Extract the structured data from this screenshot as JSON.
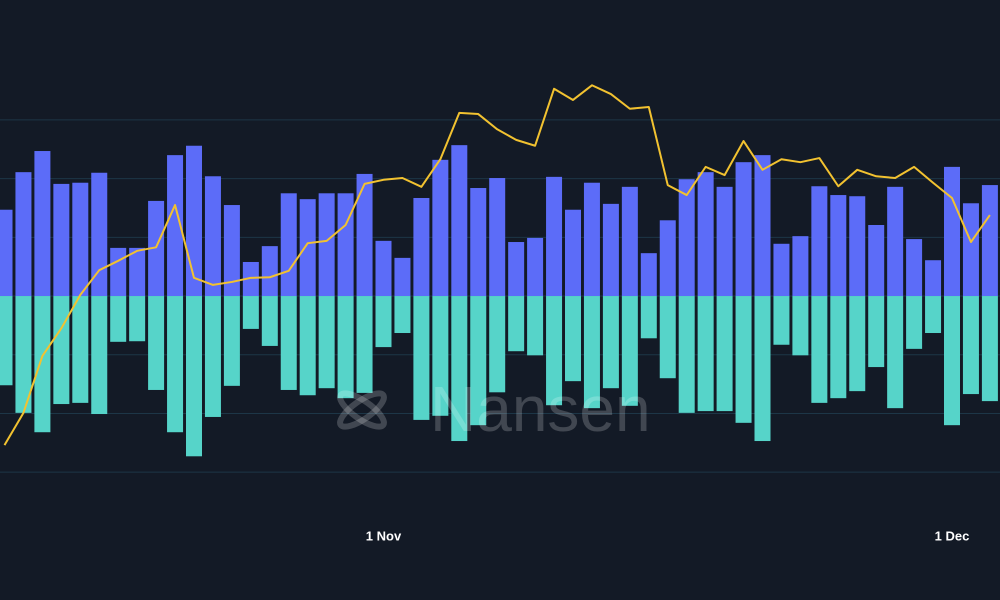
{
  "chart_data": {
    "type": "bar",
    "watermark": "Nansen",
    "categories": [
      null,
      null,
      null,
      null,
      null,
      null,
      null,
      null,
      null,
      null,
      null,
      null,
      null,
      null,
      null,
      null,
      null,
      null,
      null,
      null,
      "1 Nov",
      null,
      null,
      null,
      null,
      null,
      null,
      null,
      null,
      null,
      null,
      null,
      null,
      null,
      null,
      null,
      null,
      null,
      null,
      null,
      null,
      null,
      null,
      null,
      null,
      null,
      null,
      null,
      null,
      null,
      "1 Dec",
      null,
      null
    ],
    "ylim": [
      -3.5,
      5
    ],
    "yticks": [
      -3,
      -2,
      -1,
      0,
      1,
      2,
      3
    ],
    "grid": true,
    "series": [
      {
        "type": "bar",
        "color": "#5c6cf8",
        "values": [
          1.47,
          2.11,
          2.47,
          1.91,
          1.93,
          2.1,
          0.82,
          0.82,
          1.62,
          2.4,
          2.56,
          2.04,
          1.55,
          0.58,
          0.85,
          1.75,
          1.65,
          1.75,
          1.75,
          2.08,
          0.94,
          0.65,
          1.67,
          2.32,
          2.57,
          1.84,
          2.01,
          0.92,
          0.99,
          2.03,
          1.47,
          1.93,
          1.57,
          1.86,
          0.73,
          1.29,
          1.99,
          2.11,
          1.86,
          2.28,
          2.4,
          0.89,
          1.02,
          1.87,
          1.72,
          1.7,
          1.21,
          1.86,
          0.97,
          0.61,
          2.2,
          1.58,
          1.89
        ]
      },
      {
        "type": "bar",
        "color": "#56d4c9",
        "values": [
          -1.52,
          -1.99,
          -2.32,
          -1.84,
          -1.82,
          -2.01,
          -0.78,
          -0.77,
          -1.6,
          -2.32,
          -2.73,
          -2.06,
          -1.53,
          -0.56,
          -0.85,
          -1.6,
          -1.69,
          -1.57,
          -1.74,
          -1.65,
          -0.87,
          -0.63,
          -2.11,
          -2.04,
          -2.47,
          -2.2,
          -1.64,
          -0.94,
          -1.01,
          -1.86,
          -1.45,
          -1.91,
          -1.57,
          -1.87,
          -0.72,
          -1.4,
          -1.99,
          -1.96,
          -1.96,
          -2.16,
          -2.47,
          -0.83,
          -1.01,
          -1.82,
          -1.74,
          -1.62,
          -1.21,
          -1.91,
          -0.9,
          -0.63,
          -2.2,
          -1.67,
          -1.79
        ]
      },
      {
        "type": "line",
        "color": "#f2c230",
        "values": [
          -2.54,
          -1.99,
          -1.02,
          -0.55,
          0.02,
          0.44,
          0.6,
          0.77,
          0.83,
          1.55,
          0.31,
          0.19,
          0.24,
          0.31,
          0.32,
          0.43,
          0.9,
          0.94,
          1.21,
          1.91,
          1.98,
          2.01,
          1.86,
          2.33,
          3.12,
          3.1,
          2.84,
          2.66,
          2.56,
          3.53,
          3.34,
          3.59,
          3.44,
          3.19,
          3.22,
          1.89,
          1.72,
          2.2,
          2.06,
          2.64,
          2.15,
          2.33,
          2.28,
          2.35,
          1.87,
          2.15,
          2.04,
          2.01,
          2.2,
          1.93,
          1.67,
          0.92,
          1.38
        ]
      }
    ]
  }
}
